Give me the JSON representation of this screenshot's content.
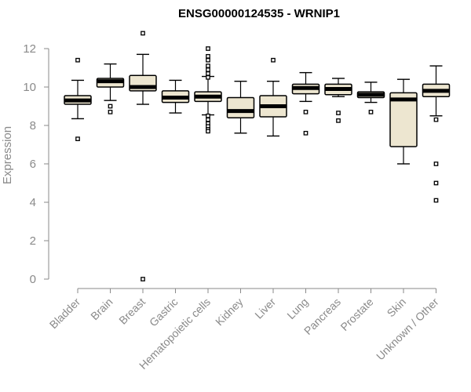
{
  "chart_data": {
    "type": "boxplot",
    "title": "ENSG00000124535 - WRNIP1",
    "ylabel": "Expression",
    "xlabel": "",
    "ylim": [
      0,
      12.6
    ],
    "yticks": [
      0,
      2,
      4,
      6,
      8,
      10,
      12
    ],
    "grid": false,
    "colors": {
      "box_fill": "#ede6d0",
      "stroke": "#000000",
      "tick_label": "#8a8a8a"
    },
    "categories": [
      "Bladder",
      "Brain",
      "Breast",
      "Gastric",
      "Hematopoietic cells",
      "Kidney",
      "Liver",
      "Lung",
      "Pancreas",
      "Prostate",
      "Skin",
      "Unknown / Other"
    ],
    "boxes": [
      {
        "category": "Bladder",
        "whisker_low": 8.35,
        "q1": 9.1,
        "median": 9.3,
        "q3": 9.55,
        "whisker_high": 10.35,
        "outliers": [
          11.4,
          7.3
        ]
      },
      {
        "category": "Brain",
        "whisker_low": 9.3,
        "q1": 10.0,
        "median": 10.3,
        "q3": 10.45,
        "whisker_high": 11.2,
        "outliers": [
          9.0,
          8.7
        ]
      },
      {
        "category": "Breast",
        "whisker_low": 9.1,
        "q1": 9.8,
        "median": 10.0,
        "q3": 10.6,
        "whisker_high": 11.7,
        "outliers": [
          12.8,
          0.0
        ]
      },
      {
        "category": "Gastric",
        "whisker_low": 8.65,
        "q1": 9.2,
        "median": 9.45,
        "q3": 9.8,
        "whisker_high": 10.35,
        "outliers": []
      },
      {
        "category": "Hematopoietic cells",
        "whisker_low": 8.55,
        "q1": 9.25,
        "median": 9.5,
        "q3": 9.75,
        "whisker_high": 10.55,
        "outliers": [
          12.0,
          11.6,
          11.4,
          11.1,
          10.9,
          10.7,
          10.5,
          8.5,
          8.3,
          8.1,
          7.95,
          7.8,
          7.7
        ]
      },
      {
        "category": "Kidney",
        "whisker_low": 7.6,
        "q1": 8.4,
        "median": 8.75,
        "q3": 9.45,
        "whisker_high": 10.3,
        "outliers": []
      },
      {
        "category": "Liver",
        "whisker_low": 7.45,
        "q1": 8.45,
        "median": 9.0,
        "q3": 9.55,
        "whisker_high": 10.3,
        "outliers": [
          11.4
        ]
      },
      {
        "category": "Lung",
        "whisker_low": 9.25,
        "q1": 9.65,
        "median": 9.95,
        "q3": 10.15,
        "whisker_high": 10.75,
        "outliers": [
          8.7,
          7.6
        ]
      },
      {
        "category": "Pancreas",
        "whisker_low": 9.5,
        "q1": 9.6,
        "median": 9.9,
        "q3": 10.15,
        "whisker_high": 10.45,
        "outliers": [
          8.65,
          8.25
        ]
      },
      {
        "category": "Prostate",
        "whisker_low": 9.2,
        "q1": 9.45,
        "median": 9.6,
        "q3": 9.75,
        "whisker_high": 10.25,
        "outliers": [
          8.7
        ]
      },
      {
        "category": "Skin",
        "whisker_low": 6.0,
        "q1": 6.9,
        "median": 9.35,
        "q3": 9.7,
        "whisker_high": 10.4,
        "outliers": []
      },
      {
        "category": "Unknown / Other",
        "whisker_low": 8.5,
        "q1": 9.5,
        "median": 9.8,
        "q3": 10.15,
        "whisker_high": 11.1,
        "outliers": [
          8.3,
          6.0,
          5.0,
          4.1
        ]
      }
    ]
  }
}
